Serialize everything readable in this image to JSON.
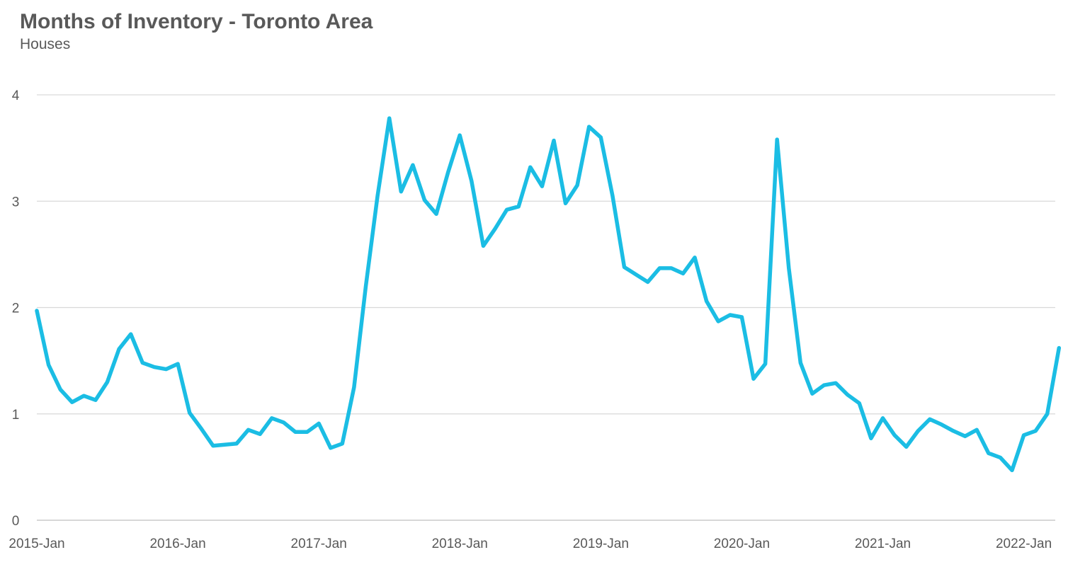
{
  "chart_data": {
    "type": "line",
    "title": "Months of Inventory - Toronto Area",
    "subtitle": "Houses",
    "xlabel": "",
    "ylabel": "",
    "ylim": [
      0,
      4
    ],
    "yticks": [
      "0",
      "1",
      "2",
      "3",
      "4"
    ],
    "xticks": [
      "2015-Jan",
      "2016-Jan",
      "2017-Jan",
      "2018-Jan",
      "2019-Jan",
      "2020-Jan",
      "2021-Jan",
      "2022-Jan"
    ],
    "grid": true,
    "series": [
      {
        "name": "Houses",
        "color": "#1bbde4",
        "values": [
          1.97,
          1.46,
          1.23,
          1.11,
          1.17,
          1.13,
          1.3,
          1.61,
          1.75,
          1.48,
          1.44,
          1.42,
          1.47,
          1.01,
          0.86,
          0.7,
          0.71,
          0.72,
          0.85,
          0.81,
          0.96,
          0.92,
          0.83,
          0.83,
          0.91,
          0.68,
          0.72,
          1.25,
          2.2,
          3.05,
          3.78,
          3.09,
          3.34,
          3.01,
          2.88,
          3.27,
          3.62,
          3.19,
          2.58,
          2.74,
          2.92,
          2.95,
          3.32,
          3.14,
          3.57,
          2.98,
          3.15,
          3.7,
          3.6,
          3.05,
          2.38,
          2.31,
          2.24,
          2.37,
          2.37,
          2.32,
          2.47,
          2.06,
          1.87,
          1.93,
          1.91,
          1.33,
          1.47,
          3.58,
          2.37,
          1.48,
          1.19,
          1.27,
          1.29,
          1.18,
          1.1,
          0.77,
          0.96,
          0.8,
          0.69,
          0.84,
          0.95,
          0.9,
          0.84,
          0.79,
          0.85,
          0.63,
          0.59,
          0.47,
          0.8,
          0.84,
          1.0,
          1.62
        ]
      }
    ]
  }
}
